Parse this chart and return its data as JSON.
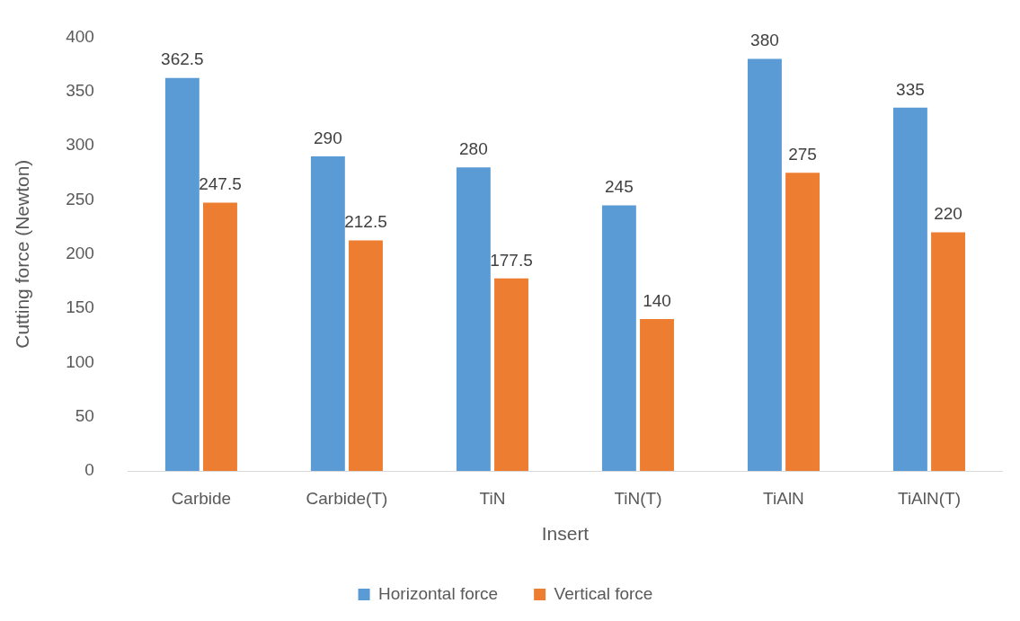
{
  "chart_data": {
    "type": "bar",
    "xlabel": "Insert",
    "ylabel": "Cutting force (Newton)",
    "categories": [
      "Carbide",
      "Carbide(T)",
      "TiN",
      "TiN(T)",
      "TiAlN",
      "TiAlN(T)"
    ],
    "series": [
      {
        "name": "Horizontal force",
        "color": "#5b9bd5",
        "values": [
          362.5,
          290,
          280,
          245,
          380,
          335
        ]
      },
      {
        "name": "Vertical force",
        "color": "#ed7d31",
        "values": [
          247.5,
          212.5,
          177.5,
          140,
          275,
          220
        ]
      }
    ],
    "ylim": [
      0,
      400
    ],
    "yticks": [
      0,
      50,
      100,
      150,
      200,
      250,
      300,
      350,
      400
    ],
    "grid": false,
    "legend": "bottom",
    "data_labels": true
  }
}
